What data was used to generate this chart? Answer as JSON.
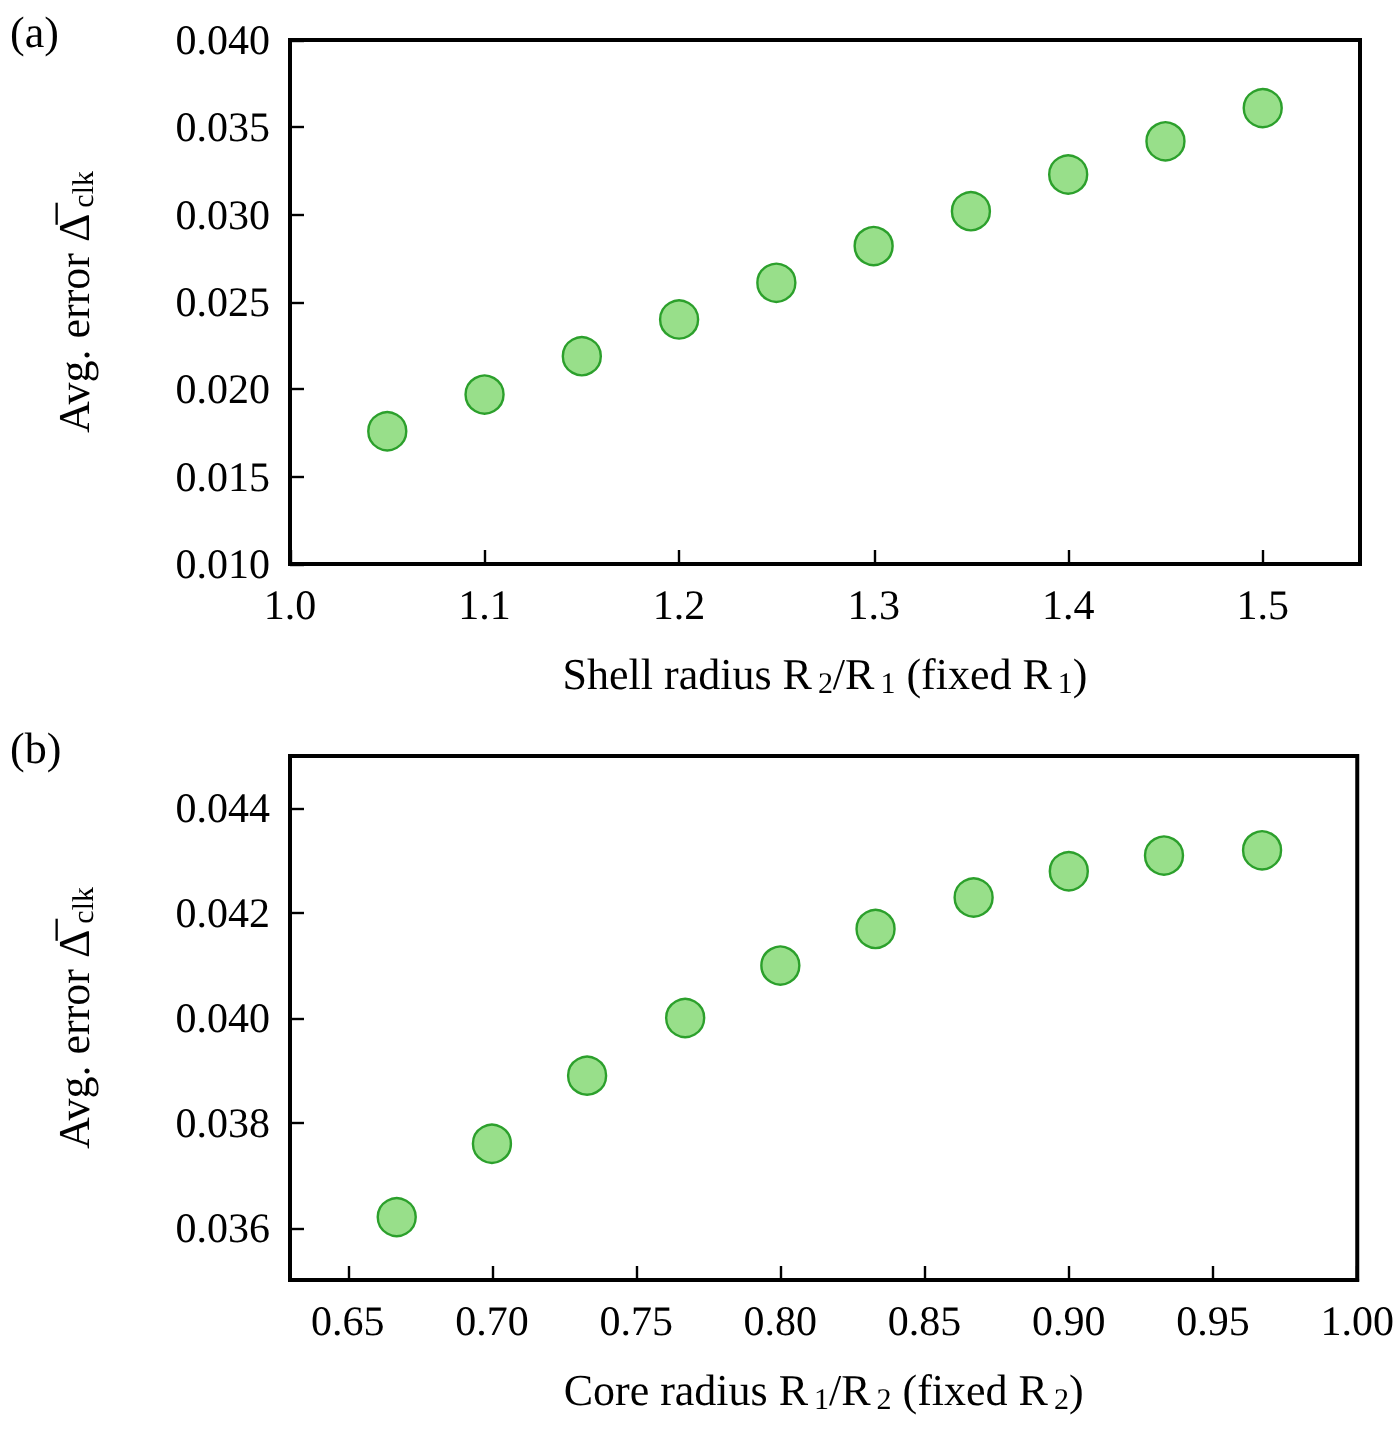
{
  "chart_data": [
    {
      "type": "scatter",
      "title": "(a)",
      "xlabel": "Shell radius R$_{2}$/R$_{1}$ (fixed R$_{1}$)",
      "ylabel": "Avg. error Δ̅$_{clk}$",
      "x": [
        1.05,
        1.1,
        1.15,
        1.2,
        1.25,
        1.3,
        1.35,
        1.4,
        1.45,
        1.5
      ],
      "series": [
        {
          "color": "#98df8a",
          "values": [
            0.0176,
            0.0197,
            0.0219,
            0.024,
            0.0261,
            0.0282,
            0.0302,
            0.0323,
            0.0342,
            0.0361
          ]
        }
      ],
      "xlim": [
        1.0,
        1.55
      ],
      "xticks": [
        {
          "value": 1.0,
          "label": "1.0"
        },
        1.1,
        1.2,
        1.3,
        1.4,
        1.5
      ],
      "ylim": [
        0.01,
        0.04
      ],
      "yticks": [
        {
          "value": 0.01,
          "label": "0.010"
        },
        {
          "value": 0.015,
          "label": "0.015"
        },
        {
          "value": 0.02,
          "label": "0.020"
        },
        {
          "value": 0.025,
          "label": "0.025"
        },
        {
          "value": 0.03,
          "label": "0.030"
        },
        {
          "value": 0.035,
          "label": "0.035"
        },
        {
          "value": 0.04,
          "label": "0.040"
        }
      ],
      "grid": false,
      "marker": "circle"
    },
    {
      "type": "scatter",
      "title": "(b)",
      "xlabel": "Core radius R$_{1}$/R$_{2}$ (fixed R$_{2}$)",
      "ylabel": "Avg. error Δ̅$_{clk}$",
      "x": [
        0.667,
        0.7,
        0.733,
        0.767,
        0.8,
        0.833,
        0.867,
        0.9,
        0.933,
        0.967
      ],
      "series": [
        {
          "color": "#98df8a",
          "values": [
            0.0362,
            0.0376,
            0.0389,
            0.04,
            0.041,
            0.0417,
            0.0423,
            0.0428,
            0.0431,
            0.0432
          ]
        }
      ],
      "xlim": [
        0.63,
        1.0
      ],
      "xticks": [
        {
          "value": 0.65,
          "label": "0.65"
        },
        {
          "value": 0.7,
          "label": "0.70"
        },
        {
          "value": 0.75,
          "label": "0.75"
        },
        {
          "value": 0.8,
          "label": "0.80"
        },
        {
          "value": 0.85,
          "label": "0.85"
        },
        {
          "value": 0.9,
          "label": "0.90"
        },
        {
          "value": 0.95,
          "label": "0.95"
        },
        {
          "value": 1.0,
          "label": "1.00"
        }
      ],
      "ylim": [
        0.035,
        0.045
      ],
      "yticks": [
        {
          "value": 0.036,
          "label": "0.036"
        },
        {
          "value": 0.038,
          "label": "0.038"
        },
        {
          "value": 0.04,
          "label": "0.040"
        },
        {
          "value": 0.042,
          "label": "0.042"
        },
        {
          "value": 0.044,
          "label": "0.044"
        }
      ],
      "grid": false,
      "marker": "circle"
    }
  ]
}
